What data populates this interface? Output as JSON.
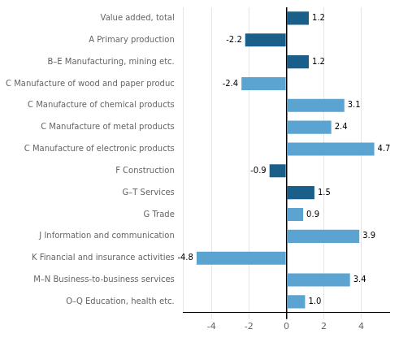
{
  "chart_data": {
    "type": "bar",
    "orientation": "horizontal",
    "categories": [
      "Value added, total",
      "A Primary production",
      "B–E Manufacturing, mining etc.",
      "C Manufacture of wood and paper produc",
      "C Manufacture of chemical products",
      "C Manufacture of metal products",
      "C Manufacture of electronic products",
      "F Construction",
      "G–T Services",
      "G Trade",
      "J Information and communication",
      "K Financial and insurance activities",
      "M–N Business-to-business services",
      "O–Q Education, health etc."
    ],
    "values": [
      1.2,
      -2.2,
      1.2,
      -2.4,
      3.1,
      2.4,
      4.7,
      -0.9,
      1.5,
      0.9,
      3.9,
      -4.8,
      3.4,
      1.0
    ],
    "value_labels": [
      "1.2",
      "-2.2",
      "1.2",
      "-2.4",
      "3.1",
      "2.4",
      "4.7",
      "-0.9",
      "1.5",
      "0.9",
      "3.9",
      "-4.8",
      "3.4",
      "1.0"
    ],
    "colors": [
      "#1a5f8a",
      "#1a5f8a",
      "#1a5f8a",
      "#5ba3d0",
      "#5ba3d0",
      "#5ba3d0",
      "#5ba3d0",
      "#1a5f8a",
      "#1a5f8a",
      "#5ba3d0",
      "#5ba3d0",
      "#5ba3d0",
      "#5ba3d0",
      "#5ba3d0"
    ],
    "xlim": [
      -5.5,
      5.5
    ],
    "xticks": [
      -4,
      -2,
      0,
      2,
      4
    ],
    "grid": true,
    "data_labels": true
  }
}
